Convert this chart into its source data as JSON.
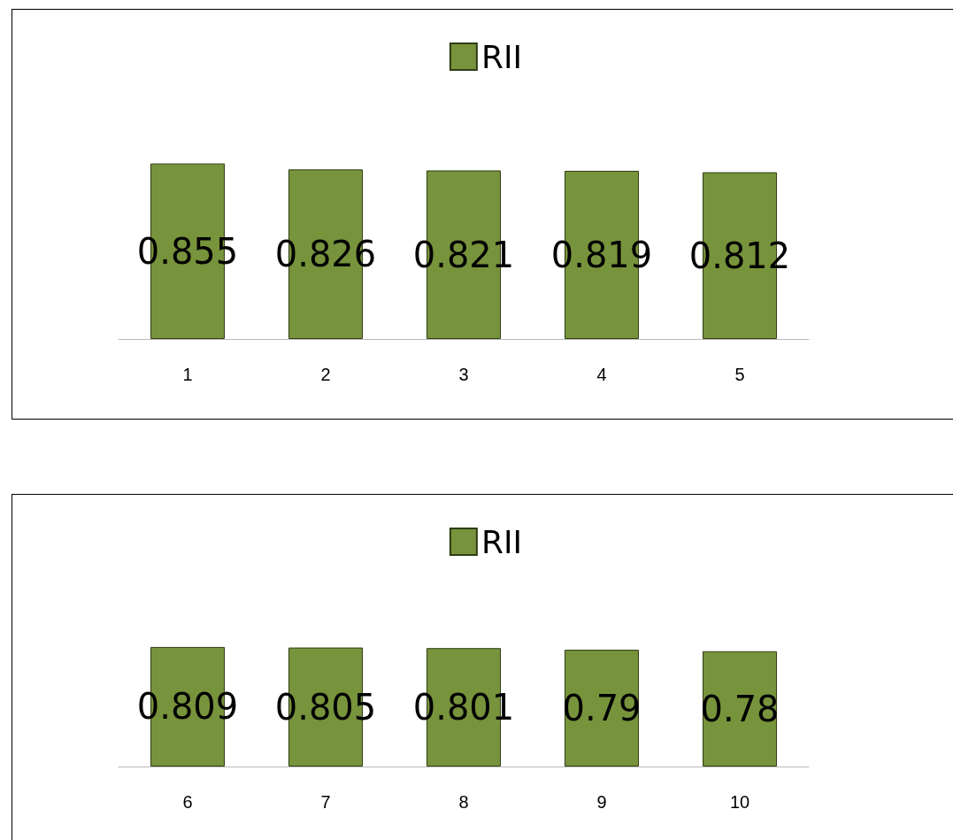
{
  "chart_data": [
    {
      "type": "bar",
      "categories": [
        "1",
        "2",
        "3",
        "4",
        "5"
      ],
      "series": [
        {
          "name": "RII",
          "color": "#77933c",
          "values": [
            0.855,
            0.826,
            0.821,
            0.819,
            0.812
          ]
        }
      ],
      "data_labels": true,
      "legend": "top",
      "grid": false,
      "tick_labels": "x"
    },
    {
      "type": "bar",
      "categories": [
        "6",
        "7",
        "8",
        "9",
        "10"
      ],
      "series": [
        {
          "name": "RII",
          "color": "#77933c",
          "values": [
            0.809,
            0.805,
            0.801,
            0.79,
            0.78
          ]
        }
      ],
      "data_labels": true,
      "legend": "top",
      "grid": false,
      "tick_labels": "x"
    }
  ]
}
